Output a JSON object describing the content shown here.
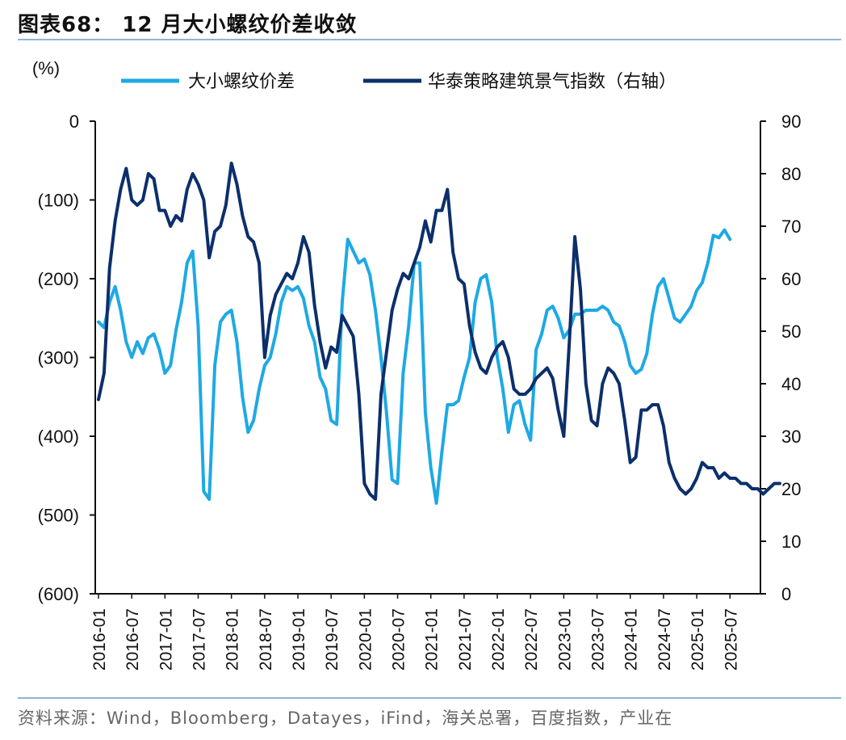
{
  "figure": {
    "title": "图表68： 12 月大小螺纹价差收敛",
    "source": "资料来源：Wind，Bloomberg，Datayes，iFind，海关总署，百度指数，产业在"
  },
  "colors": {
    "spread": "#1ea9e4",
    "index": "#0c2f6b",
    "rule": "#8fb4d3"
  },
  "chart_data": {
    "type": "line",
    "title": "12 月大小螺纹价差收敛",
    "left_axis": {
      "unit_label": "(%)",
      "ylim": [
        -600,
        0
      ],
      "ticks": [
        0,
        -100,
        -200,
        -300,
        -400,
        -500,
        -600
      ],
      "tick_labels": [
        "0",
        "(100)",
        "(200)",
        "(300)",
        "(400)",
        "(500)",
        "(600)"
      ]
    },
    "right_axis": {
      "ylim": [
        0,
        90
      ],
      "ticks": [
        0,
        10,
        20,
        30,
        40,
        50,
        60,
        70,
        80,
        90
      ],
      "tick_labels": [
        "0",
        "10",
        "20",
        "30",
        "40",
        "50",
        "60",
        "70",
        "80",
        "90"
      ]
    },
    "x_tick_labels": [
      "2016-01",
      "2016-07",
      "2017-01",
      "2017-07",
      "2018-01",
      "2018-07",
      "2019-01",
      "2019-07",
      "2020-01",
      "2020-07",
      "2021-01",
      "2021-07",
      "2022-01",
      "2022-07",
      "2023-01",
      "2023-07",
      "2024-01",
      "2024-07",
      "2025-01",
      "2025-07"
    ],
    "legend_position": "top",
    "series": [
      {
        "name": "大小螺纹价差",
        "axis": "left",
        "color": "#1ea9e4",
        "start": "2016-01",
        "values": [
          -255,
          -262,
          -230,
          -210,
          -240,
          -280,
          -300,
          -280,
          -295,
          -275,
          -270,
          -290,
          -320,
          -310,
          -265,
          -230,
          -180,
          -165,
          -260,
          -470,
          -480,
          -310,
          -255,
          -245,
          -240,
          -280,
          -350,
          -395,
          -380,
          -340,
          -310,
          -300,
          -270,
          -230,
          -210,
          -215,
          -210,
          -225,
          -260,
          -280,
          -325,
          -340,
          -380,
          -385,
          -230,
          -150,
          -165,
          -180,
          -175,
          -195,
          -240,
          -300,
          -370,
          -455,
          -460,
          -320,
          -260,
          -180,
          -180,
          -370,
          -440,
          -485,
          -420,
          -360,
          -360,
          -355,
          -325,
          -300,
          -230,
          -200,
          -195,
          -230,
          -300,
          -340,
          -395,
          -360,
          -355,
          -385,
          -405,
          -290,
          -270,
          -240,
          -235,
          -250,
          -275,
          -265,
          -245,
          -245,
          -240,
          -240,
          -240,
          -235,
          -240,
          -255,
          -260,
          -280,
          -310,
          -320,
          -315,
          -295,
          -245,
          -210,
          -200,
          -225,
          -250,
          -255,
          -245,
          -235,
          -215,
          -205,
          -180,
          -145,
          -148,
          -138,
          -150
        ]
      },
      {
        "name": "华泰策略建筑景气指数（右轴）",
        "axis": "right",
        "color": "#0c2f6b",
        "start": "2016-01",
        "values": [
          37,
          42,
          62,
          71,
          77,
          81,
          75,
          74,
          75,
          80,
          79,
          73,
          73,
          70,
          72,
          71,
          77,
          80,
          78,
          75,
          64,
          69,
          70,
          74,
          82,
          78,
          72,
          68,
          67,
          63,
          45,
          53,
          57,
          59,
          61,
          60,
          63,
          68,
          65,
          55,
          48,
          43,
          47,
          46,
          53,
          51,
          49,
          38,
          21,
          19,
          18,
          38,
          46,
          54,
          58,
          61,
          60,
          63,
          66,
          71,
          67,
          73,
          73,
          77,
          65,
          60,
          59,
          51,
          46,
          43,
          42,
          45,
          47,
          48,
          45,
          39,
          38,
          38,
          39,
          41,
          42,
          43,
          41,
          35,
          30,
          48,
          68,
          58,
          40,
          33,
          32,
          40,
          43,
          42,
          40,
          33,
          25,
          26,
          35,
          35,
          36,
          36,
          32,
          25,
          22,
          20,
          19,
          20,
          22,
          25,
          24,
          24,
          22,
          23,
          22,
          22,
          21,
          21,
          20,
          20,
          19,
          20,
          21,
          21
        ]
      }
    ]
  }
}
